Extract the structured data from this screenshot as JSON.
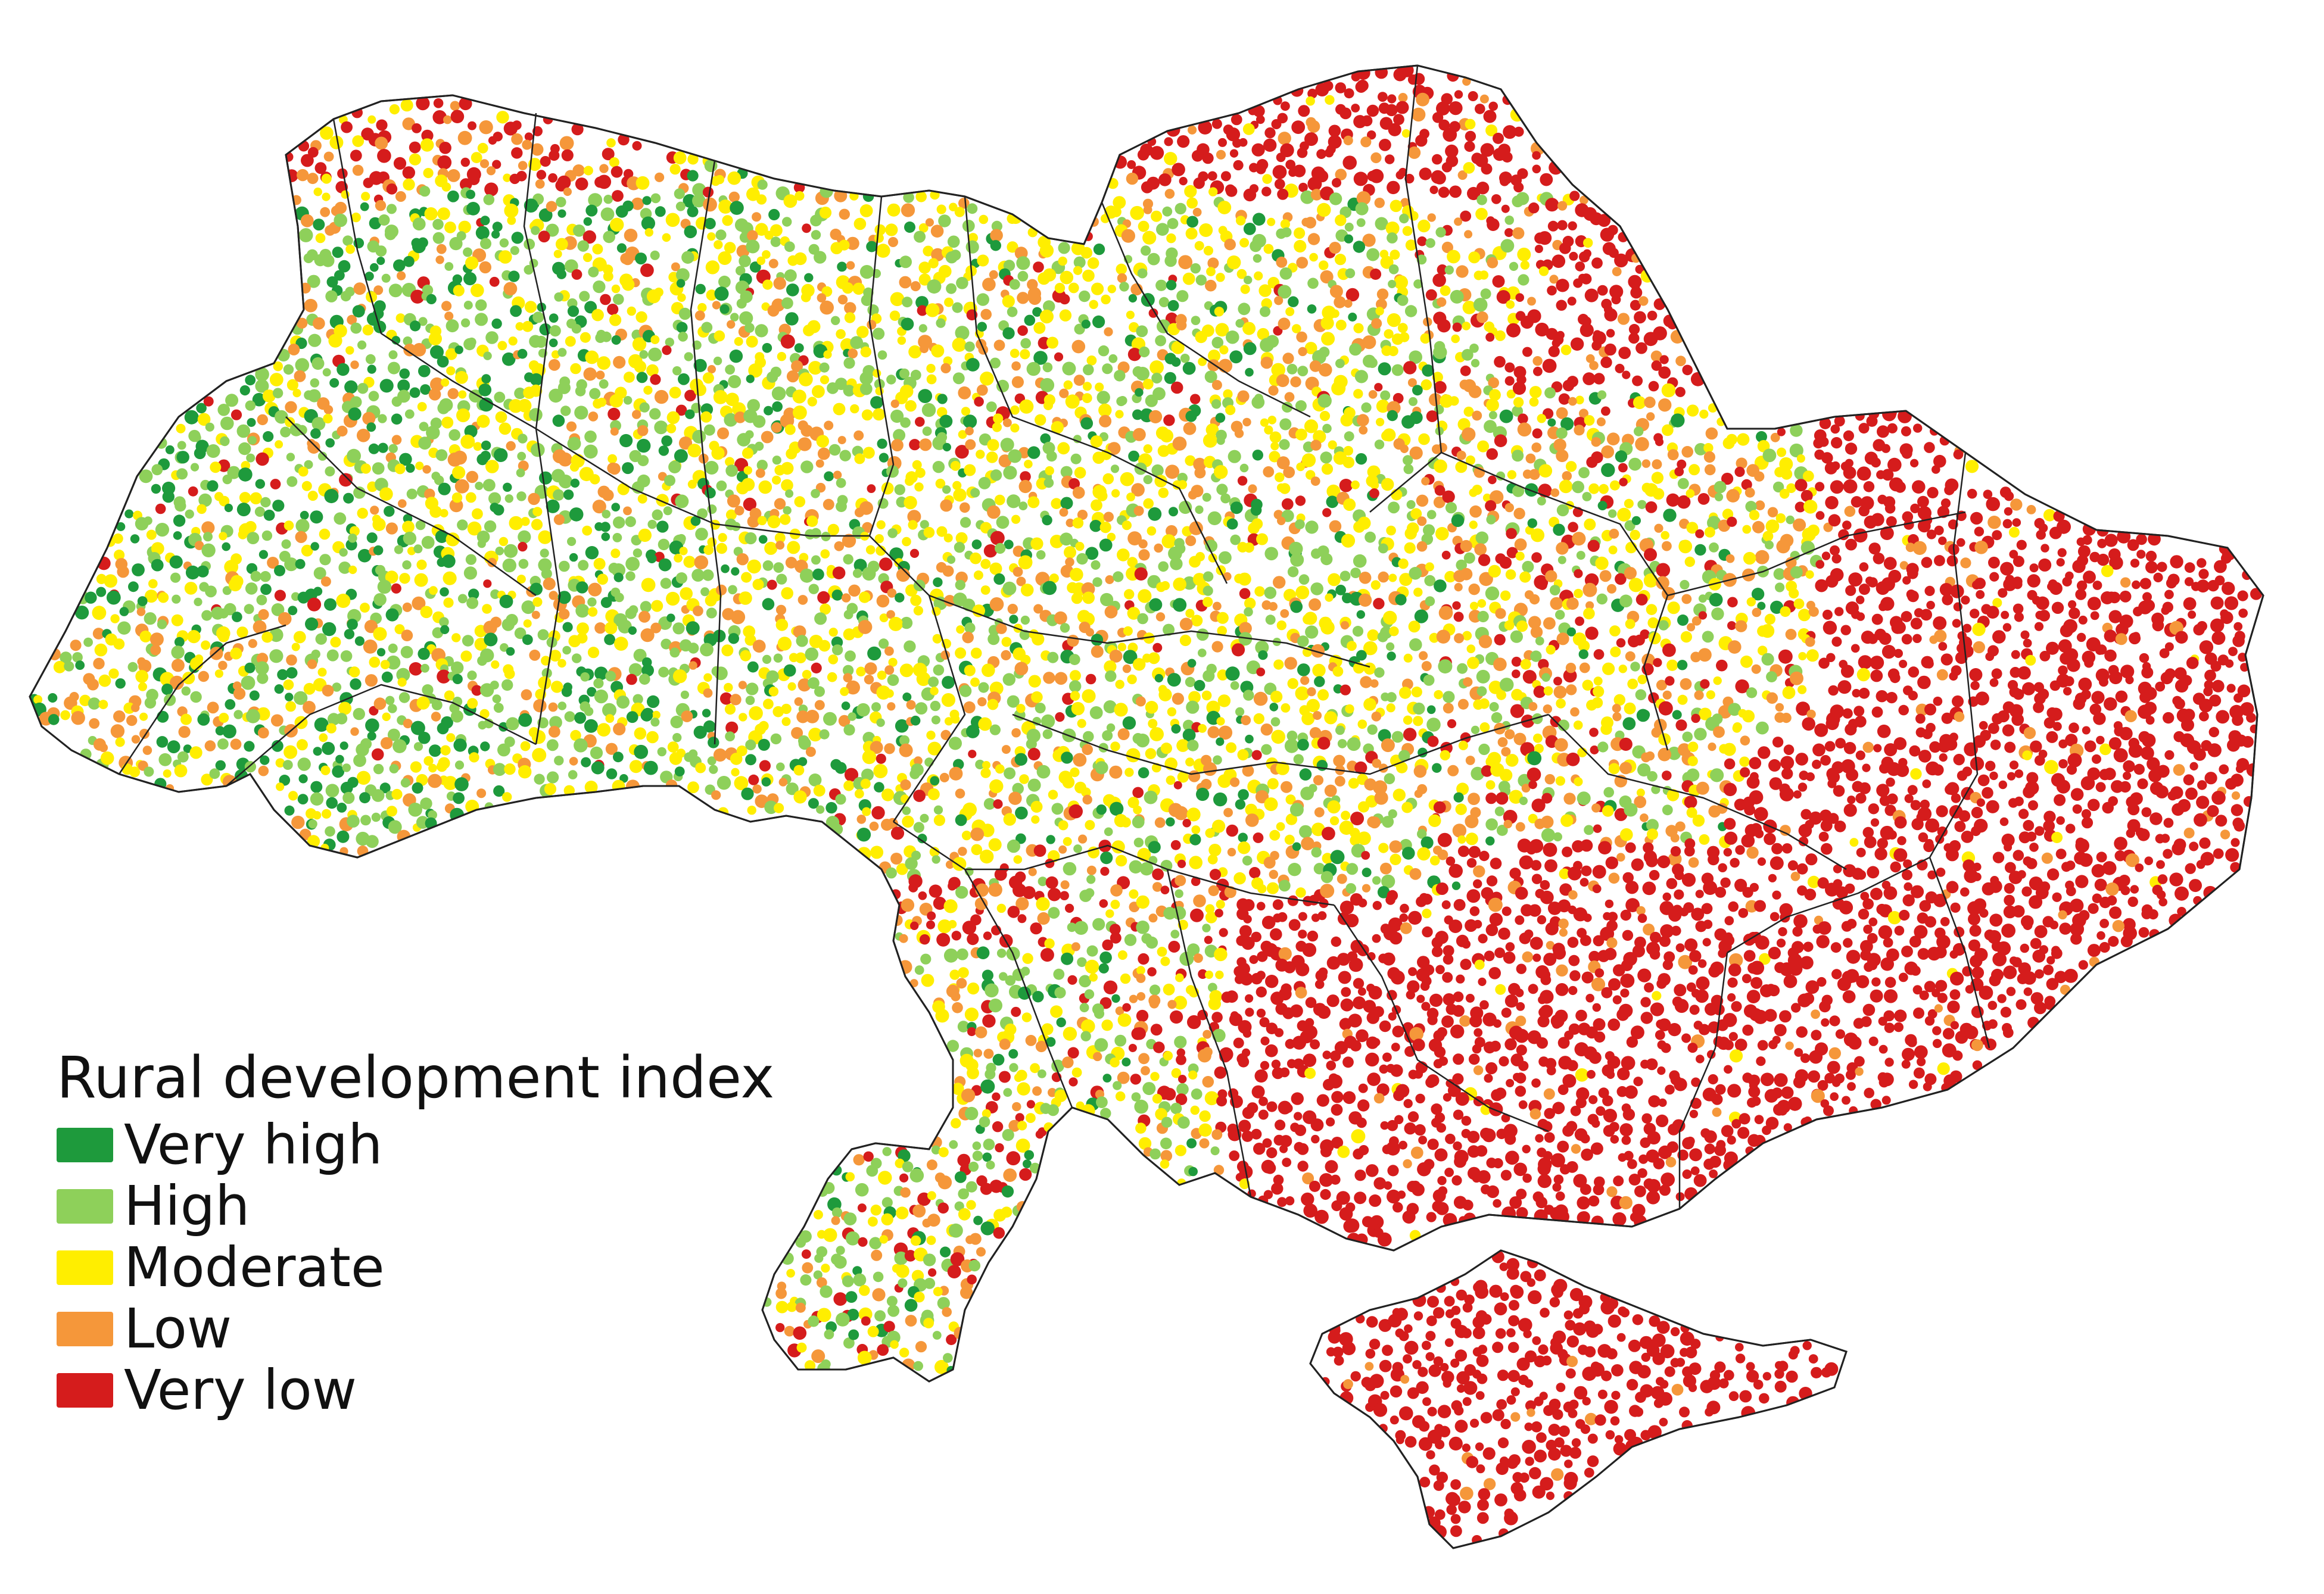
{
  "legend": {
    "title": "Rural development index",
    "items": [
      {
        "key": "very_high",
        "label": "Very high",
        "color": "#1e9a3c"
      },
      {
        "key": "high",
        "label": "High",
        "color": "#8ed05a"
      },
      {
        "key": "moderate",
        "label": "Moderate",
        "color": "#ffee00"
      },
      {
        "key": "low",
        "label": "Low",
        "color": "#f5973a"
      },
      {
        "key": "very_low",
        "label": "Very low",
        "color": "#d51c1c"
      }
    ]
  },
  "colors": {
    "background": "#ffffff",
    "boundary": "#222222"
  }
}
